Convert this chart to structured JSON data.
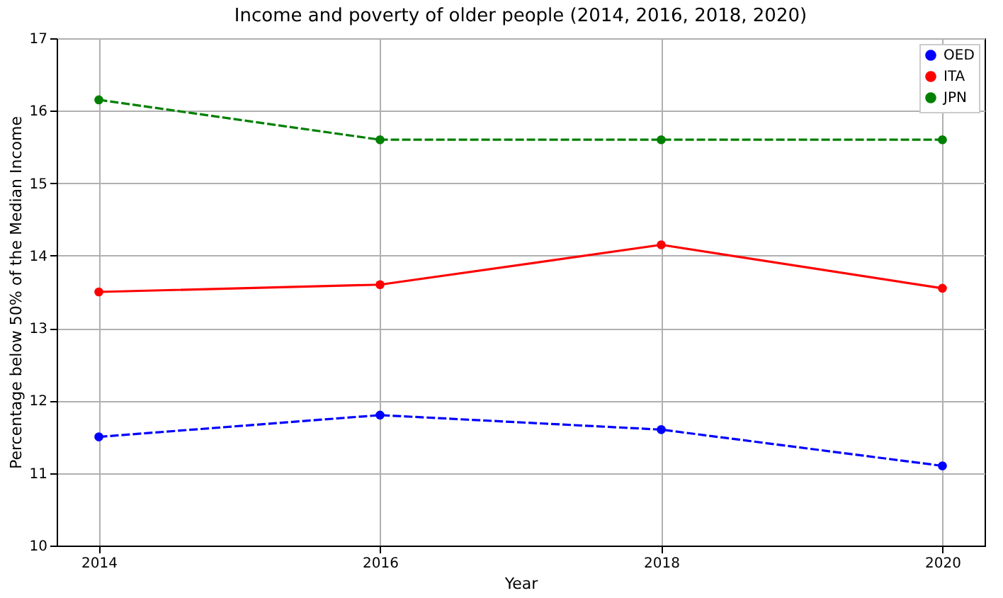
{
  "chart_data": {
    "type": "line",
    "title": "Income and poverty of older people (2014, 2016, 2018, 2020)",
    "xlabel": "Year",
    "ylabel": "Percentage below 50% of the Median Income",
    "x": [
      2014,
      2016,
      2018,
      2020
    ],
    "series": [
      {
        "name": "OED",
        "color": "#0000ff",
        "line_style": "dashed",
        "values": [
          11.5,
          11.8,
          11.6,
          11.1
        ]
      },
      {
        "name": "ITA",
        "color": "#ff0000",
        "line_style": "solid",
        "values": [
          13.5,
          13.6,
          14.15,
          13.55
        ]
      },
      {
        "name": "JPN",
        "color": "#008000",
        "line_style": "dashed",
        "values": [
          16.15,
          15.6,
          15.6,
          15.6
        ]
      }
    ],
    "xlim": [
      2013.7,
      2020.3
    ],
    "xticks": [
      2014,
      2016,
      2018,
      2020
    ],
    "ylim": [
      10,
      17
    ],
    "yticks": [
      10,
      11,
      12,
      13,
      14,
      15,
      16,
      17
    ],
    "grid": true,
    "legend": "top right",
    "marker": "circle"
  }
}
